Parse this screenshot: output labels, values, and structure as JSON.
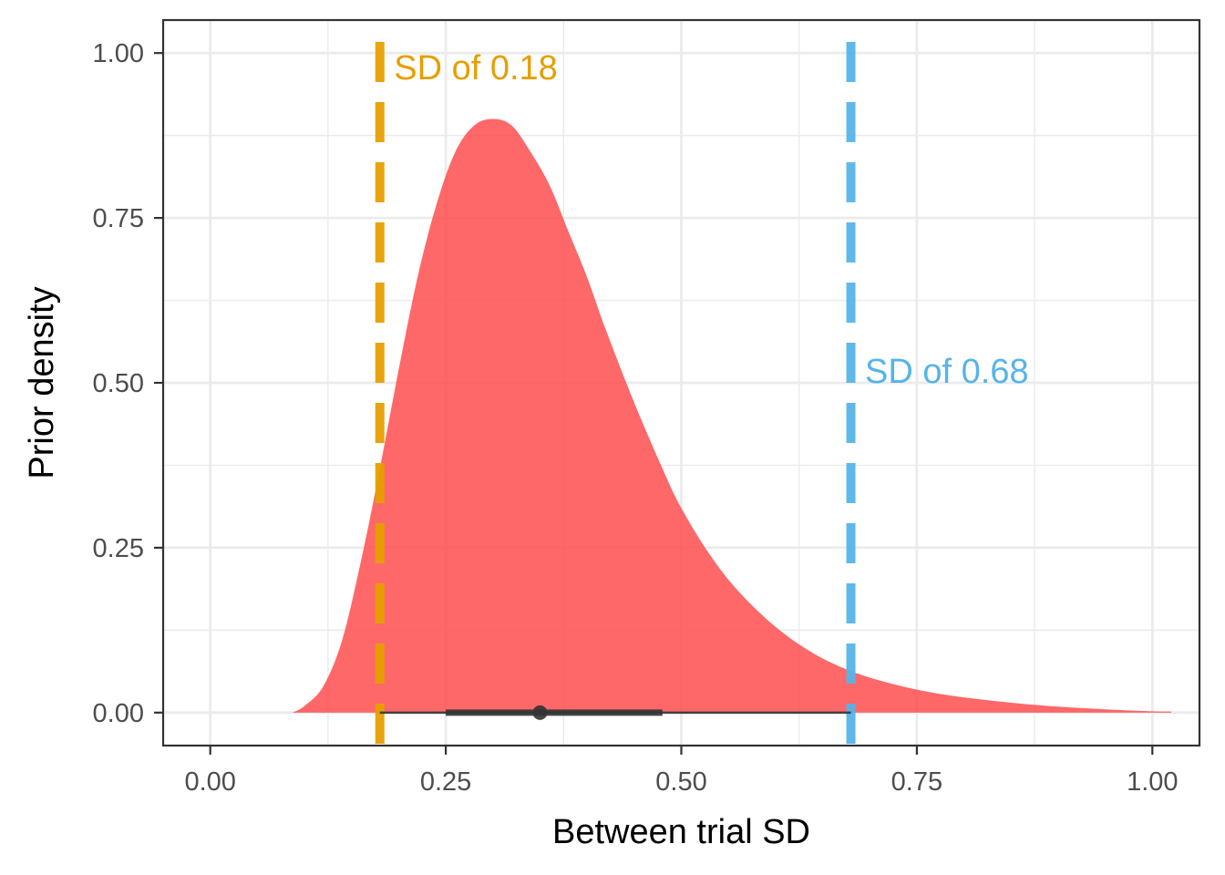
{
  "chart_data": {
    "type": "area",
    "title": "",
    "xlabel": "Between trial SD",
    "ylabel": "Prior density",
    "xlim": [
      -0.05,
      1.05
    ],
    "ylim": [
      -0.05,
      1.05
    ],
    "x_ticks": [
      0.0,
      0.25,
      0.5,
      0.75,
      1.0
    ],
    "x_tick_labels": [
      "0.00",
      "0.25",
      "0.50",
      "0.75",
      "1.00"
    ],
    "y_ticks": [
      0.0,
      0.25,
      0.5,
      0.75,
      1.0
    ],
    "y_tick_labels": [
      "0.00",
      "0.25",
      "0.50",
      "0.75",
      "1.00"
    ],
    "grid": true,
    "colors": {
      "density_fill": "#ff4d4d",
      "line_low": "#e69f00",
      "line_high": "#56b4e9",
      "interval": "#333333",
      "grid": "#ebebeb",
      "panel_border": "#333333"
    },
    "series": [
      {
        "x": [
          0.087,
          0.1,
          0.12,
          0.14,
          0.16,
          0.18,
          0.2,
          0.22,
          0.24,
          0.26,
          0.28,
          0.3,
          0.32,
          0.34,
          0.36,
          0.38,
          0.4,
          0.42,
          0.45,
          0.48,
          0.5,
          0.53,
          0.56,
          0.6,
          0.64,
          0.68,
          0.72,
          0.76,
          0.8,
          0.85,
          0.9,
          0.95,
          1.0,
          1.02
        ],
        "y": [
          0.0,
          0.01,
          0.04,
          0.11,
          0.23,
          0.37,
          0.52,
          0.66,
          0.77,
          0.85,
          0.89,
          0.9,
          0.89,
          0.85,
          0.8,
          0.73,
          0.66,
          0.58,
          0.47,
          0.37,
          0.31,
          0.24,
          0.185,
          0.13,
          0.09,
          0.063,
          0.045,
          0.032,
          0.023,
          0.015,
          0.009,
          0.005,
          0.002,
          0.0015
        ]
      }
    ],
    "vlines": [
      {
        "x": 0.18,
        "label": "SD of 0.18",
        "color": "#e69f00",
        "label_x": 0.195,
        "label_y": 0.96
      },
      {
        "x": 0.68,
        "label": "SD of 0.68",
        "color": "#56b4e9",
        "label_x": 0.695,
        "label_y": 0.5
      }
    ],
    "point_interval": {
      "point": 0.35,
      "inner": [
        0.25,
        0.48
      ],
      "outer": [
        0.18,
        0.68
      ]
    }
  }
}
